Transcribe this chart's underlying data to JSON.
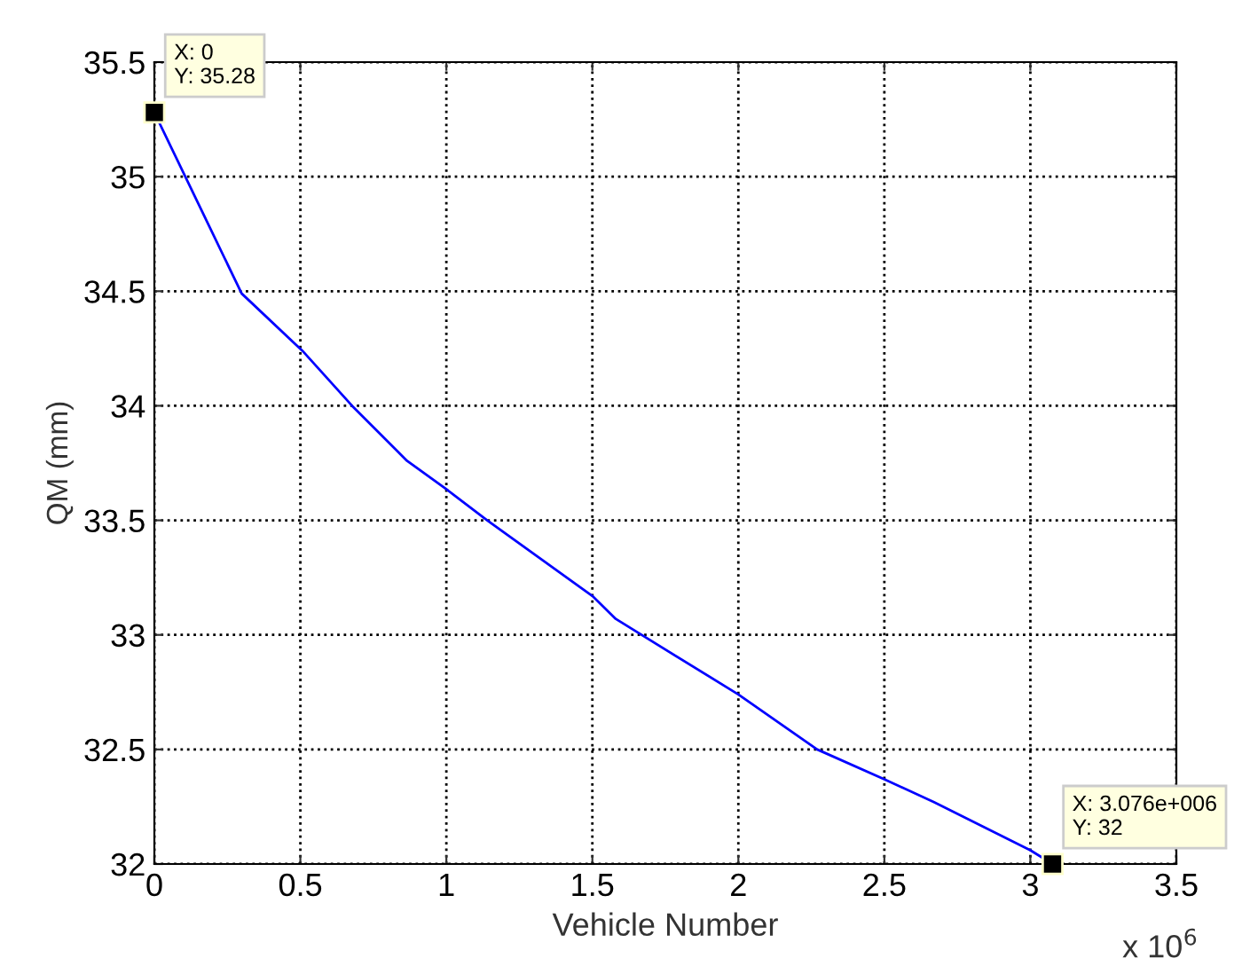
{
  "chart_data": {
    "type": "line",
    "xlabel": "Vehicle Number",
    "ylabel": "QM (mm)",
    "x": [
      0,
      0.299,
      0.507,
      0.677,
      0.865,
      1.006,
      1.14,
      1.5,
      1.58,
      2.0,
      2.27,
      2.5,
      2.67,
      3.0,
      3.076
    ],
    "series": [
      {
        "color": "#0000ff",
        "values": [
          35.28,
          34.49,
          34.24,
          34.0,
          33.76,
          33.63,
          33.5,
          33.17,
          33.07,
          32.74,
          32.5,
          32.37,
          32.27,
          32.06,
          32
        ]
      }
    ],
    "xlim": [
      0,
      3.5
    ],
    "ylim": [
      32,
      35.5
    ],
    "xticks": [
      0,
      0.5,
      1,
      1.5,
      2,
      2.5,
      3,
      3.5
    ],
    "yticks": [
      32,
      32.5,
      33,
      33.5,
      34,
      34.5,
      35,
      35.5
    ],
    "grid": true,
    "line_style": "solid",
    "marker": "none",
    "annotations": [
      {
        "text": "X: 0\nY: 35.28",
        "x": 0,
        "y": 35.28
      },
      {
        "text": "X: 3.076e+006\nY: 32",
        "x": 3.076,
        "y": 32
      },
      "x 10$^{6}$"
    ]
  }
}
